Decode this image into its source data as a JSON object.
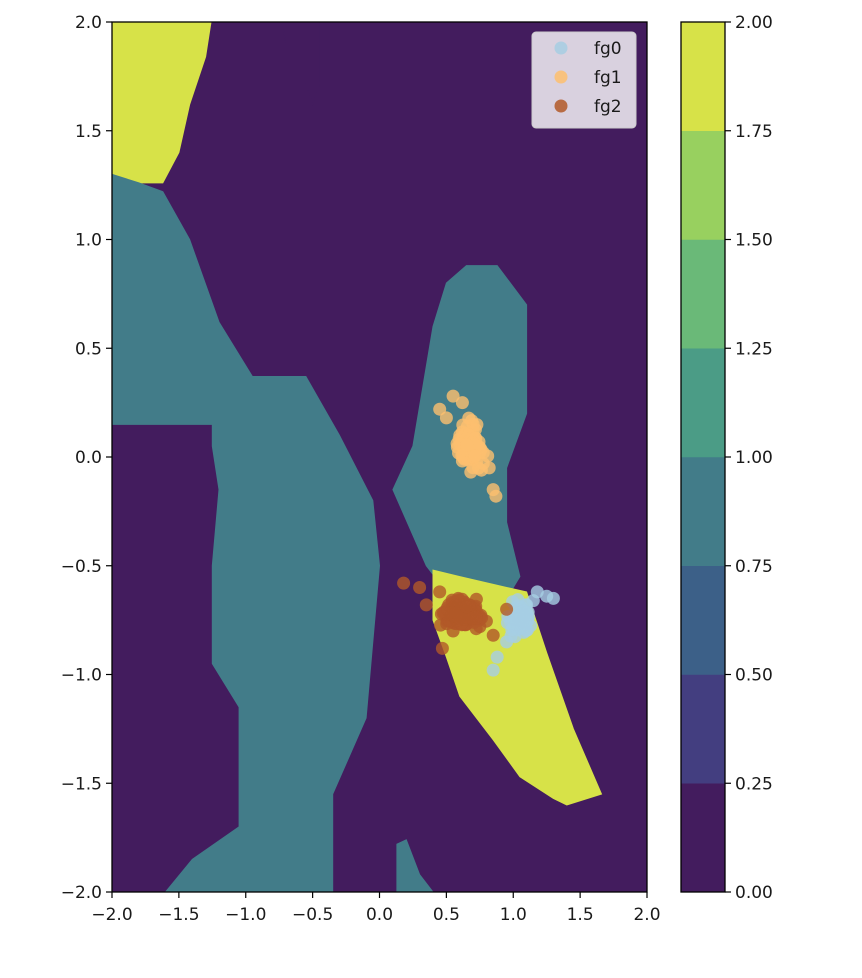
{
  "chart_data": {
    "type": "contourf-scatter",
    "title": "",
    "xlabel": "",
    "ylabel": "",
    "xlim": [
      -2.0,
      2.0
    ],
    "ylim": [
      -2.0,
      2.0
    ],
    "x_ticks": [
      "−2.0",
      "−1.5",
      "−1.0",
      "−0.5",
      "0.0",
      "0.5",
      "1.0",
      "1.5",
      "2.0"
    ],
    "x_tick_values": [
      -2.0,
      -1.5,
      -1.0,
      -0.5,
      0.0,
      0.5,
      1.0,
      1.5,
      2.0
    ],
    "y_ticks": [
      "2.0",
      "1.5",
      "1.0",
      "0.5",
      "0.0",
      "−0.5",
      "−1.0",
      "−1.5",
      "−2.0"
    ],
    "y_tick_values": [
      2.0,
      1.5,
      1.0,
      0.5,
      0.0,
      -0.5,
      -1.0,
      -1.5,
      -2.0
    ],
    "grid": false,
    "legend_placement": "top-right",
    "colorbar": {
      "levels": [
        0.0,
        0.25,
        0.5,
        0.75,
        1.0,
        1.25,
        1.5,
        1.75,
        2.0
      ],
      "tick_labels": [
        "0.00",
        "0.25",
        "0.50",
        "0.75",
        "1.00",
        "1.25",
        "1.50",
        "1.75",
        "2.00"
      ],
      "colors": [
        "#431c5e",
        "#433e80",
        "#3c6088",
        "#427c89",
        "#4b9c86",
        "#6ab978",
        "#98d05f",
        "#d7e248"
      ]
    },
    "regions": [
      {
        "level": 2.0,
        "color": "#d7e248",
        "polygon": [
          [
            -2.0,
            2.0
          ],
          [
            -1.26,
            2.0
          ],
          [
            -1.3,
            1.84
          ],
          [
            -1.42,
            1.62
          ],
          [
            -1.5,
            1.4
          ],
          [
            -1.62,
            1.26
          ],
          [
            -1.8,
            1.26
          ],
          [
            -2.0,
            1.3
          ]
        ]
      },
      {
        "level": 1.0,
        "color": "#427c89",
        "polygon": [
          [
            -2.0,
            1.3
          ],
          [
            -1.8,
            1.26
          ],
          [
            -1.62,
            1.22
          ],
          [
            -1.42,
            1.0
          ],
          [
            -1.2,
            0.62
          ],
          [
            -0.95,
            0.37
          ],
          [
            -0.55,
            0.37
          ],
          [
            -0.3,
            0.1
          ],
          [
            -0.05,
            -0.2
          ],
          [
            0.0,
            -0.5
          ],
          [
            -0.1,
            -1.2
          ],
          [
            -0.35,
            -1.55
          ],
          [
            -0.35,
            -2.0
          ],
          [
            -1.6,
            -2.0
          ],
          [
            -1.4,
            -1.85
          ],
          [
            -1.05,
            -1.7
          ],
          [
            -1.05,
            -1.15
          ],
          [
            -1.25,
            -0.95
          ],
          [
            -1.25,
            -0.5
          ],
          [
            -1.2,
            -0.15
          ],
          [
            -1.25,
            0.05
          ],
          [
            -1.25,
            0.15
          ],
          [
            -2.0,
            0.15
          ]
        ]
      },
      {
        "level": 0.0,
        "color": "#431c5e",
        "polygon": [
          [
            -0.73,
            2.0
          ],
          [
            -0.45,
            2.0
          ],
          [
            -0.45,
            1.7
          ],
          [
            -0.5,
            1.62
          ],
          [
            -0.55,
            1.72
          ],
          [
            -0.7,
            1.9
          ]
        ]
      },
      {
        "level": 1.0,
        "color": "#427c89",
        "polygon": [
          [
            0.65,
            0.88
          ],
          [
            0.88,
            0.88
          ],
          [
            1.1,
            0.7
          ],
          [
            1.1,
            0.2
          ],
          [
            0.95,
            -0.05
          ],
          [
            0.95,
            -0.3
          ],
          [
            1.05,
            -0.55
          ],
          [
            0.95,
            -0.65
          ],
          [
            0.5,
            -0.62
          ],
          [
            0.35,
            -0.5
          ],
          [
            0.1,
            -0.15
          ],
          [
            0.25,
            0.05
          ],
          [
            0.4,
            0.6
          ],
          [
            0.5,
            0.8
          ]
        ]
      },
      {
        "level": 2.0,
        "color": "#d7e248",
        "polygon": [
          [
            0.4,
            -0.52
          ],
          [
            0.6,
            -0.55
          ],
          [
            0.95,
            -0.6
          ],
          [
            1.1,
            -0.62
          ],
          [
            1.25,
            -0.9
          ],
          [
            1.45,
            -1.25
          ],
          [
            1.66,
            -1.55
          ],
          [
            1.4,
            -1.6
          ],
          [
            1.3,
            -1.57
          ],
          [
            1.05,
            -1.47
          ],
          [
            0.85,
            -1.3
          ],
          [
            0.6,
            -1.1
          ],
          [
            0.5,
            -0.92
          ],
          [
            0.4,
            -0.75
          ]
        ]
      },
      {
        "level": 1.0,
        "color": "#427c89",
        "polygon": [
          [
            0.13,
            -2.0
          ],
          [
            0.4,
            -2.0
          ],
          [
            0.3,
            -1.92
          ],
          [
            0.2,
            -1.76
          ],
          [
            0.13,
            -1.78
          ]
        ]
      }
    ],
    "series": [
      {
        "name": "fg0",
        "color": "#a6cee3",
        "center": [
          1.05,
          -0.75
        ],
        "spread": [
          0.12,
          0.1
        ],
        "count": 55,
        "points": [
          [
            1.18,
            -0.62
          ],
          [
            1.25,
            -0.64
          ],
          [
            1.3,
            -0.65
          ],
          [
            1.1,
            -0.68
          ],
          [
            1.0,
            -0.78
          ],
          [
            0.95,
            -0.85
          ],
          [
            0.88,
            -0.92
          ],
          [
            0.85,
            -0.98
          ],
          [
            1.05,
            -0.72
          ],
          [
            1.15,
            -0.66
          ]
        ]
      },
      {
        "name": "fg1",
        "color": "#fdbf6f",
        "center": [
          0.68,
          0.05
        ],
        "spread": [
          0.12,
          0.12
        ],
        "count": 90,
        "points": [
          [
            0.45,
            0.22
          ],
          [
            0.55,
            0.28
          ],
          [
            0.62,
            0.25
          ],
          [
            0.7,
            0.15
          ],
          [
            0.75,
            0.02
          ],
          [
            0.82,
            -0.05
          ],
          [
            0.85,
            -0.15
          ],
          [
            0.87,
            -0.18
          ],
          [
            0.6,
            0.1
          ],
          [
            0.5,
            0.18
          ]
        ]
      },
      {
        "name": "fg2",
        "color": "#b15928",
        "center": [
          0.6,
          -0.72
        ],
        "spread": [
          0.2,
          0.07
        ],
        "count": 160,
        "points": [
          [
            0.18,
            -0.58
          ],
          [
            0.3,
            -0.6
          ],
          [
            0.45,
            -0.62
          ],
          [
            0.6,
            -0.7
          ],
          [
            0.75,
            -0.78
          ],
          [
            0.85,
            -0.82
          ],
          [
            0.47,
            -0.88
          ],
          [
            0.35,
            -0.68
          ],
          [
            0.95,
            -0.7
          ],
          [
            0.55,
            -0.8
          ]
        ]
      }
    ]
  }
}
